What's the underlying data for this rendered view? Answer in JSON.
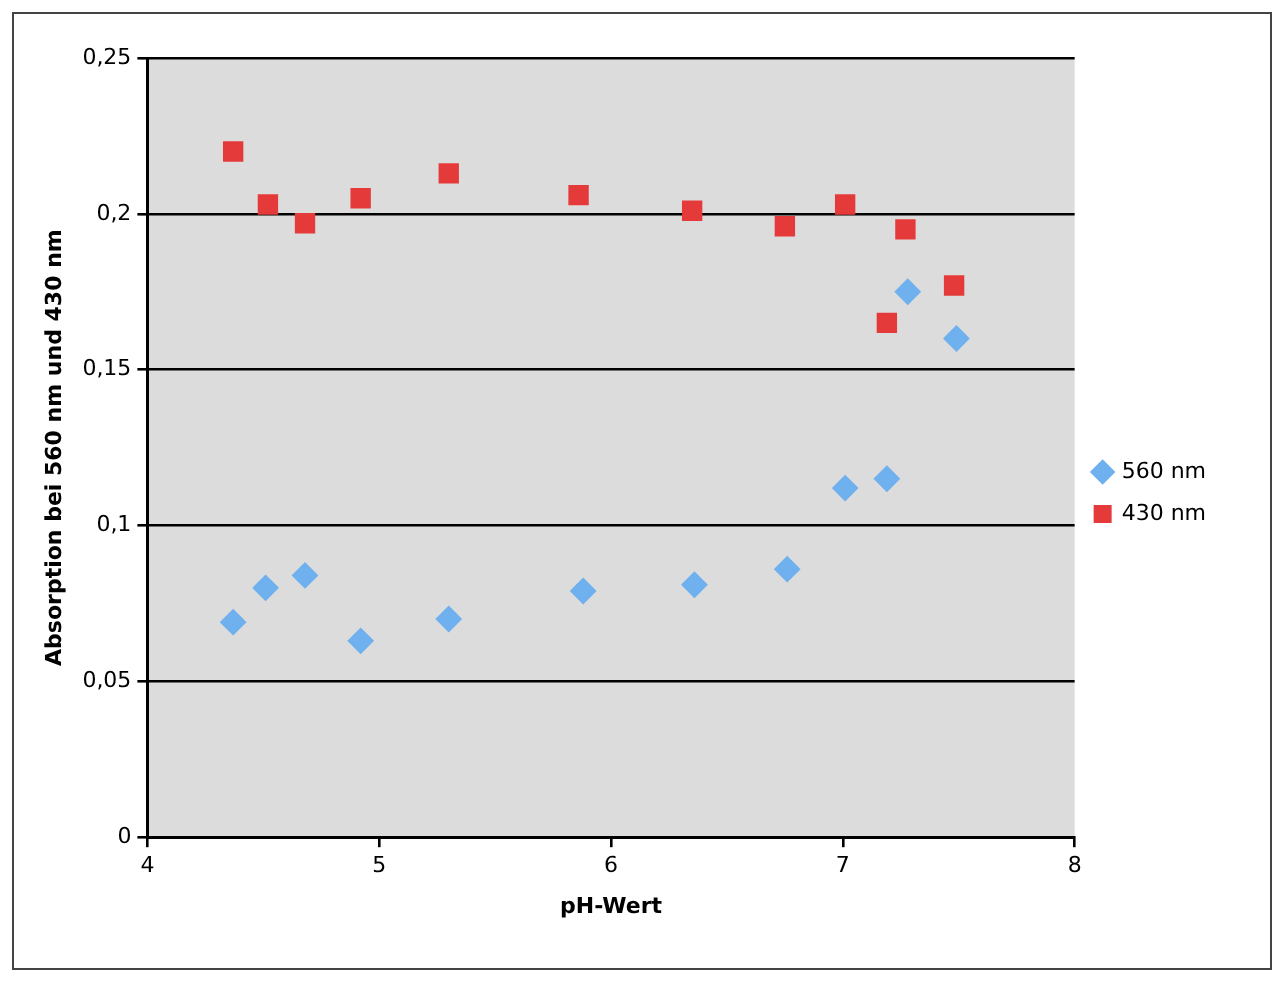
{
  "chart_data": {
    "type": "scatter",
    "xlabel": "pH-Wert",
    "ylabel": "Absorption bei 560 nm und 430 nm",
    "xlim": [
      4,
      8
    ],
    "xticks": [
      4,
      5,
      6,
      7,
      8
    ],
    "ylim": [
      0,
      0.25
    ],
    "yticks": [
      {
        "value": 0,
        "label": "0"
      },
      {
        "value": 0.05,
        "label": "0,05"
      },
      {
        "value": 0.1,
        "label": "0,1"
      },
      {
        "value": 0.15,
        "label": "0,15"
      },
      {
        "value": 0.2,
        "label": "0,2"
      },
      {
        "value": 0.25,
        "label": "0,25"
      }
    ],
    "grid": "y",
    "legend": "right",
    "series": [
      {
        "name": "560 nm",
        "color": "#6fb0ef",
        "marker": "diamond",
        "x": [
          4.37,
          4.51,
          4.68,
          4.92,
          5.3,
          5.88,
          6.36,
          6.76,
          7.01,
          7.19,
          7.28,
          7.49
        ],
        "values": [
          0.069,
          0.08,
          0.084,
          0.063,
          0.07,
          0.079,
          0.081,
          0.086,
          0.112,
          0.115,
          0.175,
          0.16
        ]
      },
      {
        "name": "430 nm",
        "color": "#e53a3a",
        "marker": "square",
        "x": [
          4.37,
          4.52,
          4.68,
          4.92,
          5.3,
          5.86,
          6.35,
          6.75,
          7.01,
          7.19,
          7.27,
          7.48
        ],
        "values": [
          0.22,
          0.203,
          0.197,
          0.205,
          0.213,
          0.206,
          0.201,
          0.196,
          0.203,
          0.165,
          0.195,
          0.177
        ]
      }
    ]
  }
}
